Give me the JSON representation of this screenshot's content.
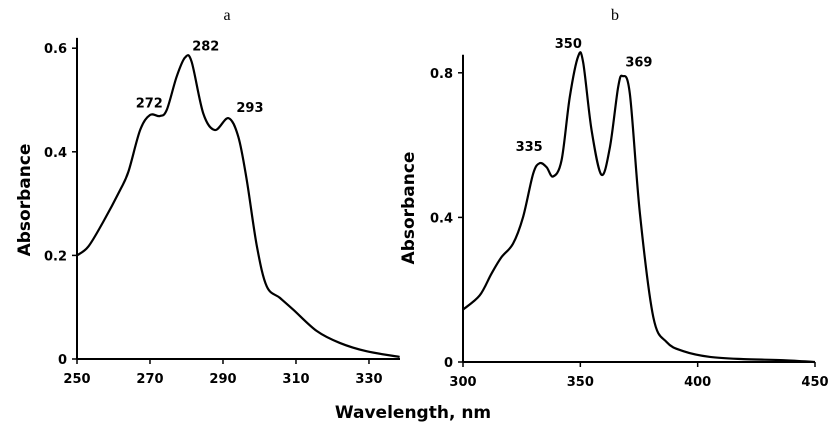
{
  "xlabel": "Wavelength, nm",
  "chart_data": [
    {
      "type": "line",
      "panel_label": "a",
      "ylabel": "Absorbance",
      "xlim": [
        250,
        338.5
      ],
      "ylim": [
        0,
        0.62
      ],
      "xticks": [
        250,
        270,
        290,
        310,
        330
      ],
      "yticks": [
        0,
        0.2,
        0.4,
        0.6
      ],
      "ytick_labels": [
        "0",
        "0.2",
        "0.4",
        "0.6"
      ],
      "grid": false,
      "peak_labels": [
        {
          "text": "272",
          "x": 272,
          "y": 0.47
        },
        {
          "text": "282",
          "x": 282,
          "y": 0.58
        },
        {
          "text": "293",
          "x": 293,
          "y": 0.465
        }
      ],
      "x": [
        250,
        253.1,
        257.2,
        261.8,
        264.1,
        267.3,
        270,
        272.7,
        274.6,
        277.3,
        279.6,
        281.4,
        284.6,
        287.8,
        291.5,
        294.2,
        296.5,
        299.3,
        302,
        305.6,
        309.3,
        315.7,
        322,
        329.3,
        338.4
      ],
      "y": [
        0.2,
        0.217,
        0.265,
        0.326,
        0.362,
        0.442,
        0.471,
        0.469,
        0.481,
        0.545,
        0.582,
        0.574,
        0.474,
        0.442,
        0.465,
        0.429,
        0.346,
        0.217,
        0.14,
        0.118,
        0.095,
        0.054,
        0.031,
        0.015,
        0.004
      ]
    },
    {
      "type": "line",
      "panel_label": "b",
      "ylabel": "Absorbance",
      "xlim": [
        300,
        450
      ],
      "ylim": [
        0,
        0.85
      ],
      "xticks": [
        300,
        350,
        400,
        450
      ],
      "yticks": [
        0,
        0.4,
        0.8
      ],
      "ytick_labels": [
        "0",
        "0.4",
        "0.8"
      ],
      "grid": false,
      "peak_labels": [
        {
          "text": "335",
          "x": 335,
          "y": 0.55
        },
        {
          "text": "350",
          "x": 350,
          "y": 0.846
        },
        {
          "text": "369",
          "x": 369,
          "y": 0.79
        }
      ],
      "x": [
        300,
        307.1,
        312.1,
        316.4,
        321.3,
        325.6,
        329.9,
        332.7,
        335.6,
        338.4,
        342,
        345.5,
        349.1,
        351.2,
        354.8,
        359,
        362.6,
        366.1,
        368,
        371.1,
        375.4,
        381.1,
        386.8,
        393.9,
        405.3,
        419.5,
        436.6,
        450
      ],
      "y": [
        0.145,
        0.184,
        0.244,
        0.29,
        0.327,
        0.401,
        0.521,
        0.55,
        0.539,
        0.513,
        0.558,
        0.733,
        0.846,
        0.829,
        0.641,
        0.518,
        0.594,
        0.76,
        0.791,
        0.742,
        0.41,
        0.124,
        0.055,
        0.03,
        0.014,
        0.008,
        0.005,
        0.0
      ]
    }
  ]
}
